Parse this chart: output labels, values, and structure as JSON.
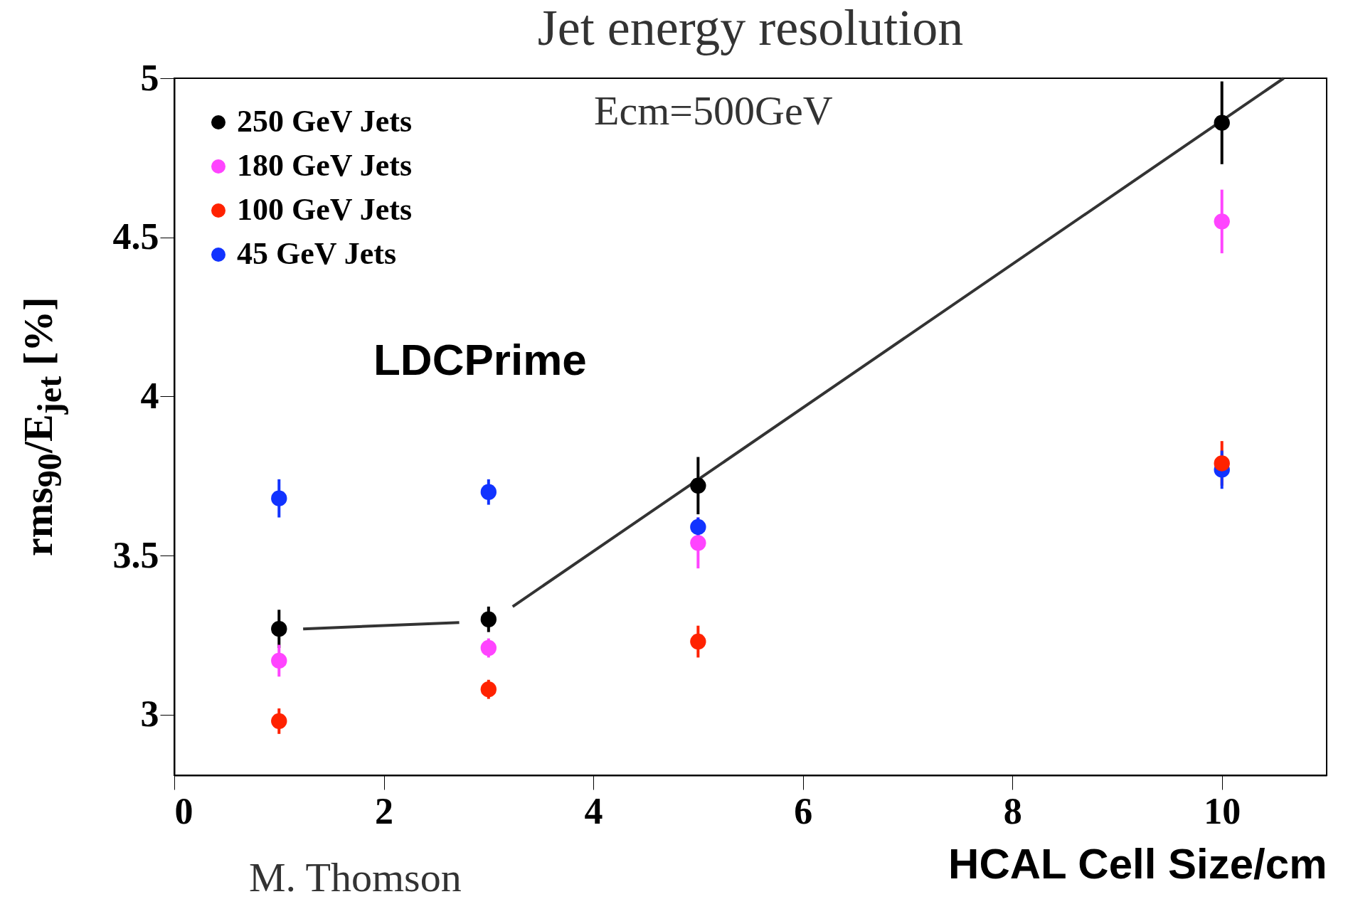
{
  "chart_data": {
    "type": "scatter",
    "title": "Jet energy resolution",
    "xlabel": "HCAL Cell Size/cm",
    "ylabel": "rms$_{90}$/E$_{jet}$ [%]",
    "annotations": [
      "Ecm=500GeV",
      "LDCPrime",
      "M. Thomson"
    ],
    "xlim": [
      0,
      11
    ],
    "xticks": [
      0,
      2,
      4,
      6,
      8,
      10
    ],
    "ylim": [
      2.81,
      5
    ],
    "yticks": [
      3,
      3.5,
      4,
      4.5,
      5
    ],
    "grid": false,
    "legend": "top left",
    "marker": "circle",
    "series": [
      {
        "name": "250 GeV Jets",
        "color": "#000000",
        "x": [
          1,
          3,
          5,
          10
        ],
        "values": [
          3.27,
          3.3,
          3.72,
          4.86
        ],
        "errors": [
          0.06,
          0.04,
          0.09,
          0.13
        ]
      },
      {
        "name": "180 GeV Jets",
        "color": "#ff44ff",
        "x": [
          1,
          3,
          5,
          10
        ],
        "values": [
          3.17,
          3.21,
          3.54,
          4.55
        ],
        "errors": [
          0.05,
          0.03,
          0.08,
          0.1
        ]
      },
      {
        "name": "100 GeV Jets",
        "color": "#ff2200",
        "x": [
          1,
          3,
          5,
          10
        ],
        "values": [
          2.98,
          3.08,
          3.23,
          3.79
        ],
        "errors": [
          0.04,
          0.03,
          0.05,
          0.07
        ]
      },
      {
        "name": "45 GeV Jets",
        "color": "#1133ff",
        "x": [
          1,
          3,
          5,
          10
        ],
        "values": [
          3.68,
          3.7,
          3.59,
          3.77
        ],
        "errors": [
          0.06,
          0.04,
          0.03,
          0.06
        ]
      },
      {
        "type": "line",
        "color": "#333333",
        "marker": "none",
        "x": [
          1.23,
          2.72
        ],
        "values": [
          3.27,
          3.29
        ]
      },
      {
        "type": "line",
        "color": "#333333",
        "marker": "none",
        "x": [
          3.23,
          10.59
        ],
        "values": [
          3.34,
          5.0
        ]
      }
    ]
  }
}
